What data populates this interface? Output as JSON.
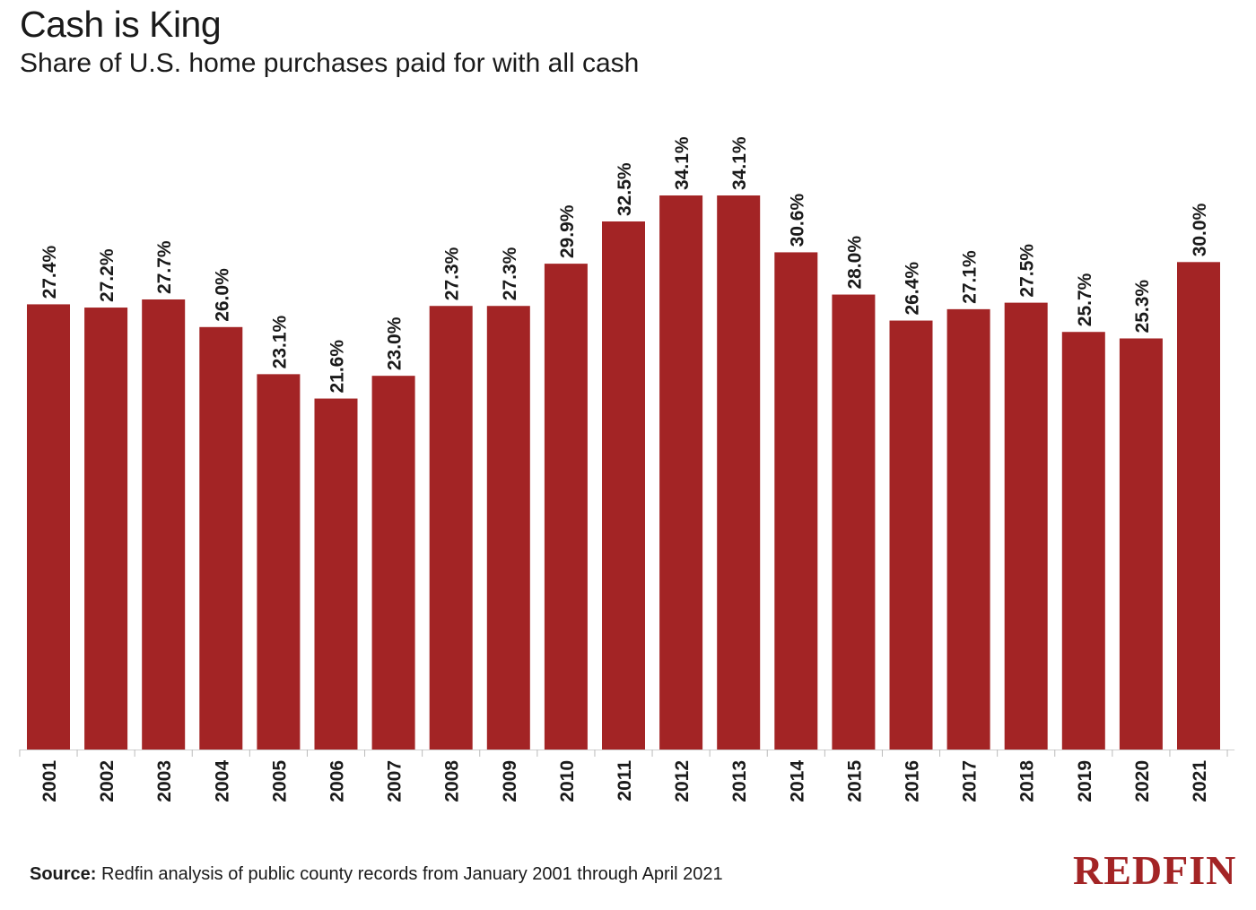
{
  "chart_data": {
    "type": "bar",
    "title": "Cash is King",
    "subtitle": "Share of U.S. home purchases paid for with all cash",
    "categories": [
      "2001",
      "2002",
      "2003",
      "2004",
      "2005",
      "2006",
      "2007",
      "2008",
      "2009",
      "2010",
      "2011",
      "2012",
      "2013",
      "2014",
      "2015",
      "2016",
      "2017",
      "2018",
      "2019",
      "2020",
      "2021"
    ],
    "values": [
      27.4,
      27.2,
      27.7,
      26.0,
      23.1,
      21.6,
      23.0,
      27.3,
      27.3,
      29.9,
      32.5,
      34.1,
      34.1,
      30.6,
      28.0,
      26.4,
      27.1,
      27.5,
      25.7,
      25.3,
      30.0
    ],
    "labels": [
      "27.4%",
      "27.2%",
      "27.7%",
      "26.0%",
      "23.1%",
      "21.6%",
      "23.0%",
      "27.3%",
      "27.3%",
      "29.9%",
      "32.5%",
      "34.1%",
      "34.1%",
      "30.6%",
      "28.0%",
      "26.4%",
      "27.1%",
      "27.5%",
      "25.7%",
      "25.3%",
      "30.0%"
    ],
    "ylim": [
      0,
      34.1
    ],
    "grid": false,
    "bar_color": "#a32425"
  },
  "footer": {
    "source_label": "Source:",
    "source_text": " Redfin analysis of public county records from January 2001 through April 2021"
  },
  "brand": {
    "logo_text": "REDFIN",
    "color": "#a32425"
  }
}
